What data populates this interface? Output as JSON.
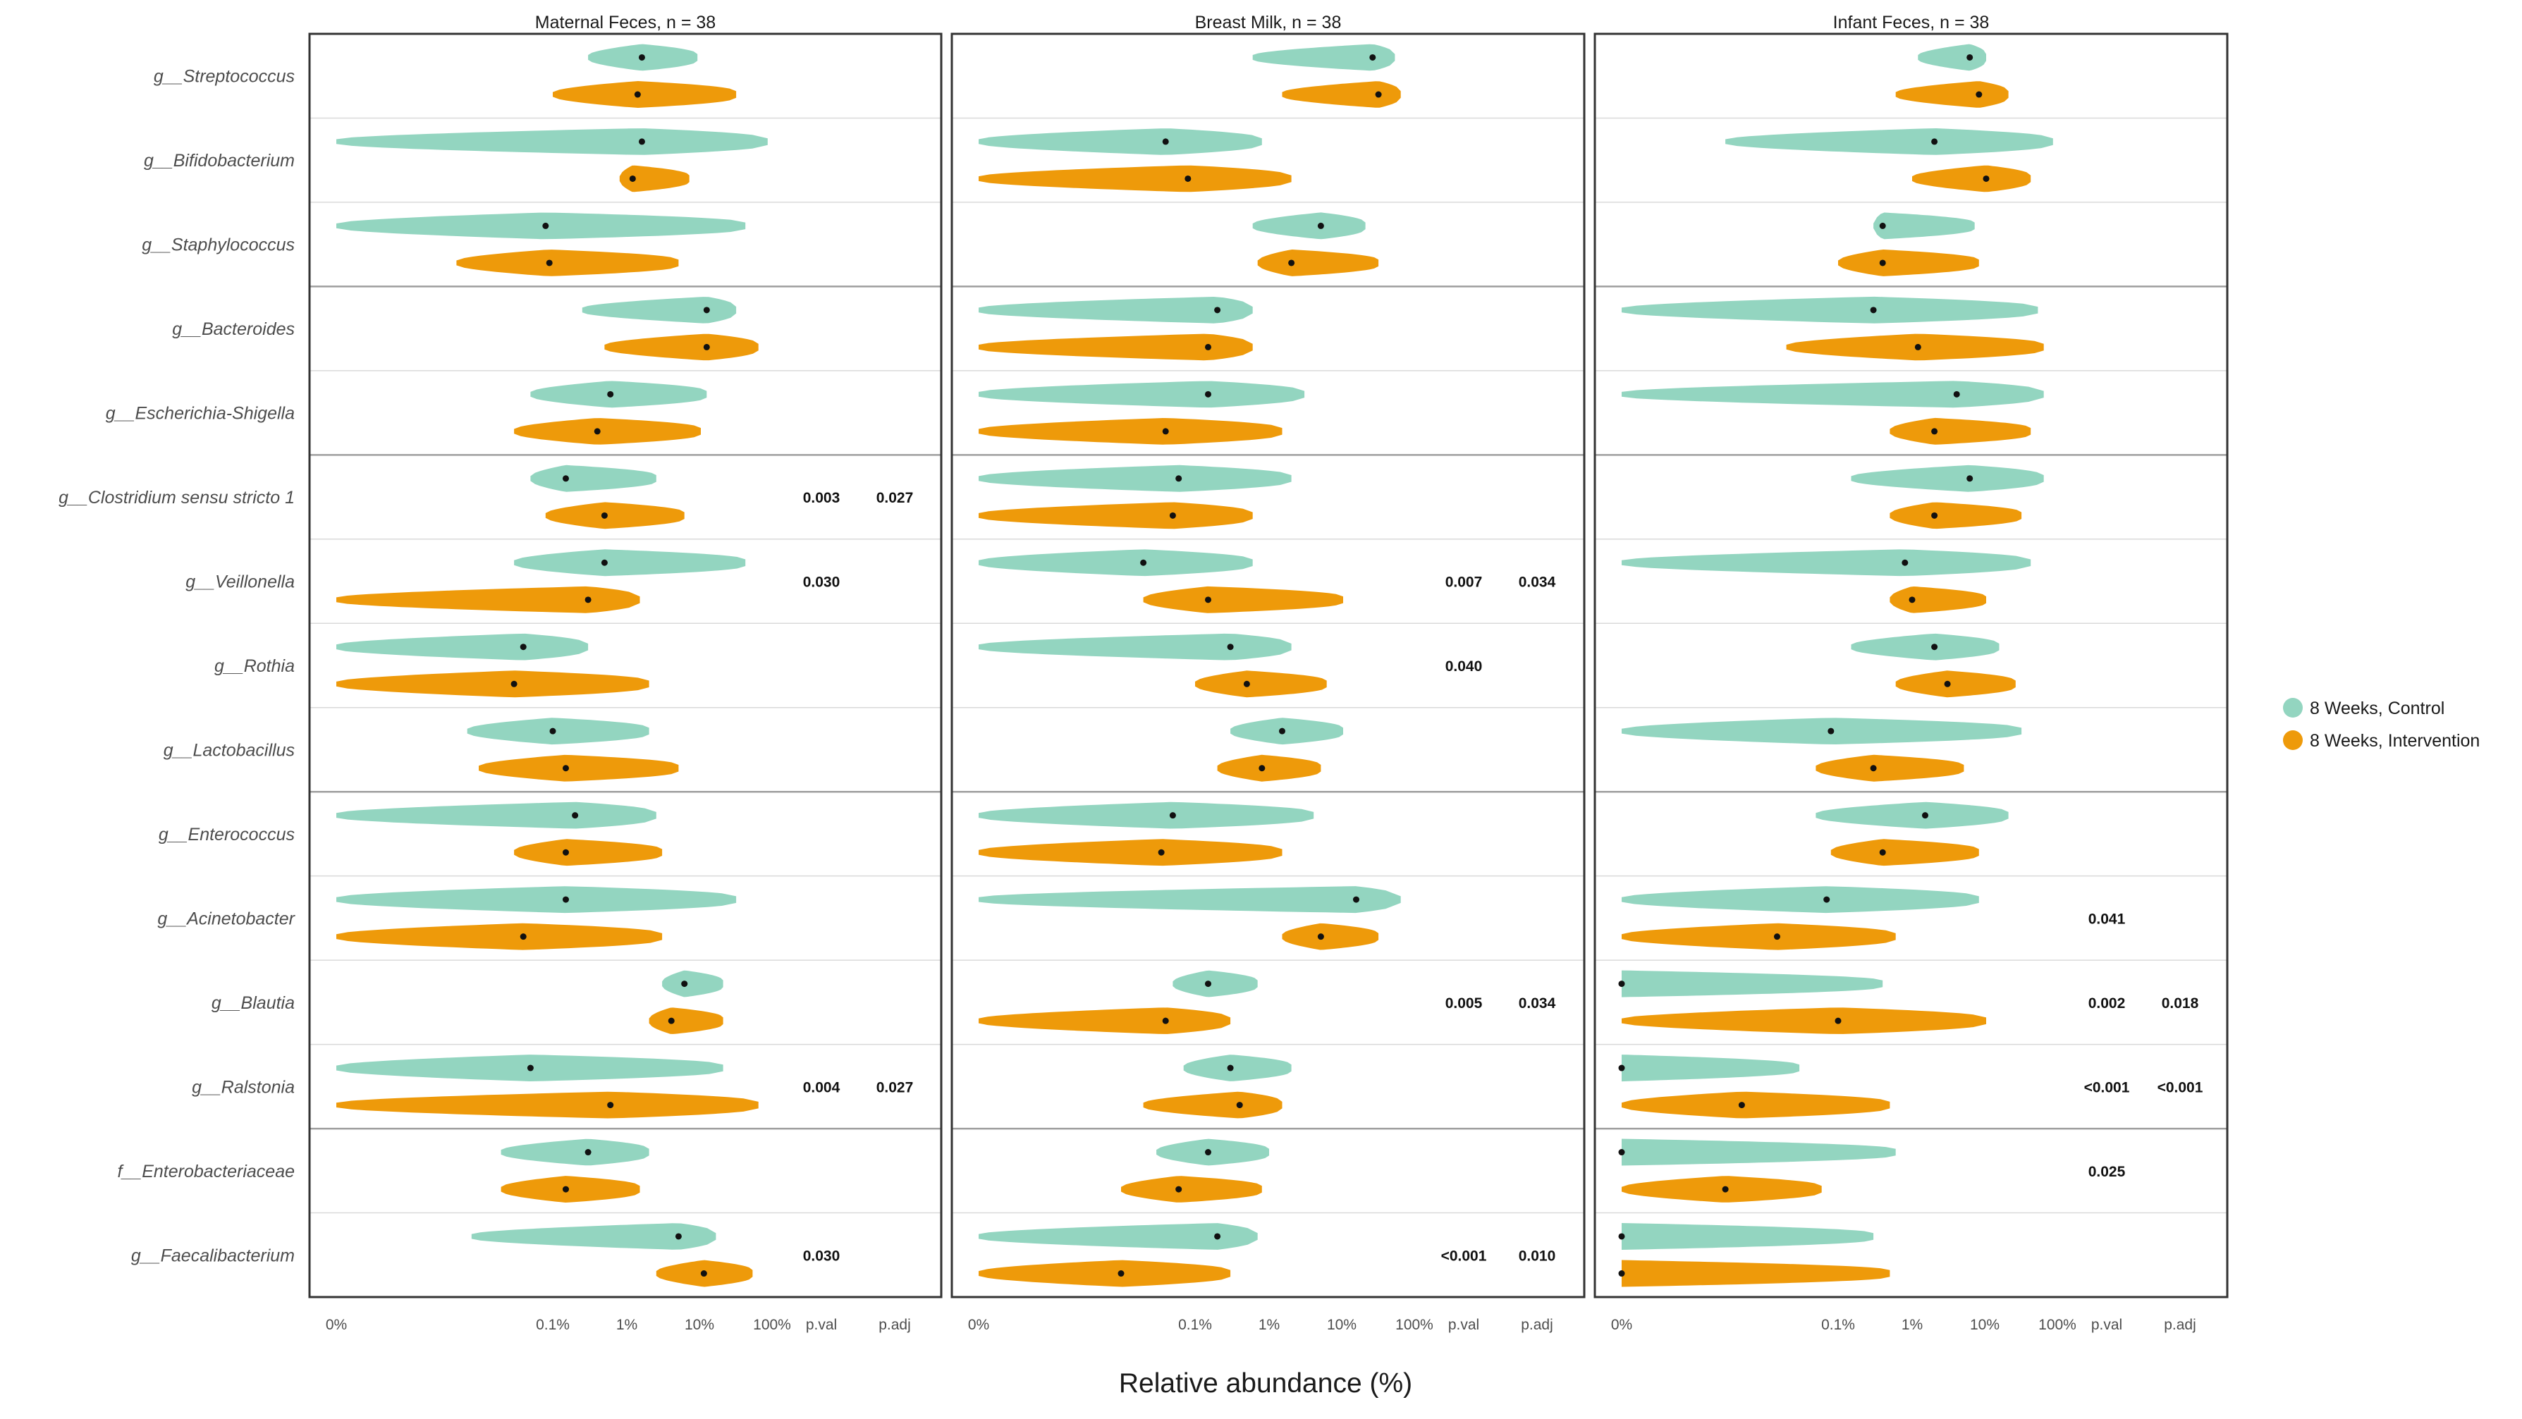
{
  "chart_data": {
    "type": "violin",
    "xlabel": "Relative abundance (%)",
    "x_scale": "log",
    "x_ticks": [
      "0%",
      "0.1%",
      "1%",
      "10%",
      "100%"
    ],
    "stat_columns": [
      "p.val",
      "p.adj"
    ],
    "colors": {
      "control": "#93d5c0",
      "intervention": "#ee9a0a",
      "median_point": "#111111",
      "frame": "#333333",
      "grid": "#bdbdbd"
    },
    "legend": {
      "position": "right",
      "entries": [
        {
          "name": "8 Weeks, Control",
          "color": "#93d5c0"
        },
        {
          "name": "8 Weeks, Intervention",
          "color": "#ee9a0a"
        }
      ]
    },
    "taxa": [
      "g__Streptococcus",
      "g__Bifidobacterium",
      "g__Staphylococcus",
      "g__Bacteroides",
      "g__Escherichia-Shigella",
      "g__Clostridium sensu stricto 1",
      "g__Veillonella",
      "g__Rothia",
      "g__Lactobacillus",
      "g__Enterococcus",
      "g__Acinetobacter",
      "g__Blautia",
      "g__Ralstonia",
      "f__Enterobacteriaceae",
      "g__Faecalibacterium"
    ],
    "panels": [
      {
        "title": "Maternal Feces, n = 38",
        "median_percent": {
          "control": [
            1.6,
            1.6,
            0.08,
            12,
            0.6,
            0.15,
            0.5,
            0.04,
            0.1,
            0.2,
            0.15,
            6,
            0.05,
            0.3,
            5
          ],
          "intervention": [
            1.4,
            1.2,
            0.09,
            12,
            0.4,
            0.5,
            0.3,
            0.03,
            0.15,
            0.15,
            0.04,
            4,
            0.6,
            0.15,
            11
          ]
        },
        "range_percent": {
          "control": [
            [
              0.3,
              9
            ],
            [
              0,
              80
            ],
            [
              0,
              40
            ],
            [
              0.25,
              30
            ],
            [
              0.05,
              12
            ],
            [
              0.05,
              2.5
            ],
            [
              0.03,
              40
            ],
            [
              0,
              0.3
            ],
            [
              0.007,
              2
            ],
            [
              0,
              2.5
            ],
            [
              0,
              30
            ],
            [
              3,
              20
            ],
            [
              0,
              20
            ],
            [
              0.02,
              2
            ],
            [
              0.008,
              16
            ]
          ],
          "intervention": [
            [
              0.1,
              30
            ],
            [
              0.8,
              7
            ],
            [
              0.005,
              5
            ],
            [
              0.5,
              60
            ],
            [
              0.03,
              10
            ],
            [
              0.08,
              6
            ],
            [
              0,
              1.5
            ],
            [
              0,
              2
            ],
            [
              0.01,
              5
            ],
            [
              0.03,
              3
            ],
            [
              0,
              3
            ],
            [
              2,
              20
            ],
            [
              0,
              60
            ],
            [
              0.02,
              1.5
            ],
            [
              2.5,
              50
            ]
          ]
        },
        "p_val": [
          "",
          "",
          "",
          "",
          "",
          "0.003",
          "0.030",
          "",
          "",
          "",
          "",
          "",
          "0.004",
          "",
          "0.030"
        ],
        "p_adj": [
          "",
          "",
          "",
          "",
          "",
          "0.027",
          "",
          "",
          "",
          "",
          "",
          "",
          "0.027",
          "",
          ""
        ]
      },
      {
        "title": "Breast Milk, n = 38",
        "median_percent": {
          "control": [
            25,
            0.04,
            5,
            0.2,
            0.15,
            0.06,
            0.02,
            0.3,
            1.5,
            0.05,
            15,
            0.15,
            0.3,
            0.15,
            0.2
          ],
          "intervention": [
            30,
            0.08,
            2,
            0.15,
            0.04,
            0.05,
            0.15,
            0.5,
            0.8,
            0.035,
            5,
            0.04,
            0.4,
            0.06,
            0.01
          ]
        },
        "range_percent": {
          "control": [
            [
              0.6,
              50
            ],
            [
              0,
              0.8
            ],
            [
              0.6,
              20
            ],
            [
              0,
              0.6
            ],
            [
              0,
              3
            ],
            [
              0,
              2
            ],
            [
              0,
              0.6
            ],
            [
              0,
              2
            ],
            [
              0.3,
              10
            ],
            [
              0,
              4
            ],
            [
              0,
              60
            ],
            [
              0.05,
              0.7
            ],
            [
              0.07,
              2
            ],
            [
              0.03,
              1
            ],
            [
              0,
              0.7
            ]
          ],
          "intervention": [
            [
              1.5,
              60
            ],
            [
              0,
              2
            ],
            [
              0.7,
              30
            ],
            [
              0,
              0.6
            ],
            [
              0,
              1.5
            ],
            [
              0,
              0.6
            ],
            [
              0.02,
              10
            ],
            [
              0.1,
              6
            ],
            [
              0.2,
              5
            ],
            [
              0,
              1.5
            ],
            [
              1.5,
              30
            ],
            [
              0,
              0.3
            ],
            [
              0.02,
              1.5
            ],
            [
              0.01,
              0.8
            ],
            [
              0,
              0.3
            ]
          ]
        },
        "p_val": [
          "",
          "",
          "",
          "",
          "",
          "",
          "0.007",
          "0.040",
          "",
          "",
          "",
          "0.005",
          "",
          "",
          "<0.001"
        ],
        "p_adj": [
          "",
          "",
          "",
          "",
          "",
          "",
          "0.034",
          "",
          "",
          "",
          "",
          "0.034",
          "",
          "",
          "0.010"
        ]
      },
      {
        "title": "Infant Feces, n = 38",
        "median_percent": {
          "control": [
            6,
            2,
            0.4,
            0.3,
            4,
            6,
            0.8,
            2,
            0.08,
            1.5,
            0.07,
            0,
            0,
            0,
            0
          ],
          "intervention": [
            8,
            10,
            0.4,
            1.2,
            2,
            2,
            1,
            3,
            0.3,
            0.4,
            0.015,
            0.1,
            0.005,
            0.003,
            0
          ]
        },
        "range_percent": {
          "control": [
            [
              1.2,
              10
            ],
            [
              0.003,
              80
            ],
            [
              0.3,
              7
            ],
            [
              0,
              50
            ],
            [
              0,
              60
            ],
            [
              0.15,
              60
            ],
            [
              0,
              40
            ],
            [
              0.15,
              15
            ],
            [
              0,
              30
            ],
            [
              0.05,
              20
            ],
            [
              0,
              8
            ],
            [
              0,
              0.4
            ],
            [
              0,
              0.03
            ],
            [
              0,
              0.6
            ],
            [
              0,
              0.3
            ]
          ],
          "intervention": [
            [
              0.6,
              20
            ],
            [
              1,
              40
            ],
            [
              0.1,
              8
            ],
            [
              0.02,
              60
            ],
            [
              0.5,
              40
            ],
            [
              0.5,
              30
            ],
            [
              0.5,
              10
            ],
            [
              0.6,
              25
            ],
            [
              0.05,
              5
            ],
            [
              0.08,
              8
            ],
            [
              0,
              0.6
            ],
            [
              0,
              10
            ],
            [
              0,
              0.5
            ],
            [
              0,
              0.06
            ],
            [
              0,
              0.5
            ]
          ]
        },
        "p_val": [
          "",
          "",
          "",
          "",
          "",
          "",
          "",
          "",
          "",
          "",
          "0.041",
          "0.002",
          "<0.001",
          "0.025",
          ""
        ],
        "p_adj": [
          "",
          "",
          "",
          "",
          "",
          "",
          "",
          "",
          "",
          "",
          "",
          "0.018",
          "<0.001",
          "",
          ""
        ]
      }
    ]
  }
}
